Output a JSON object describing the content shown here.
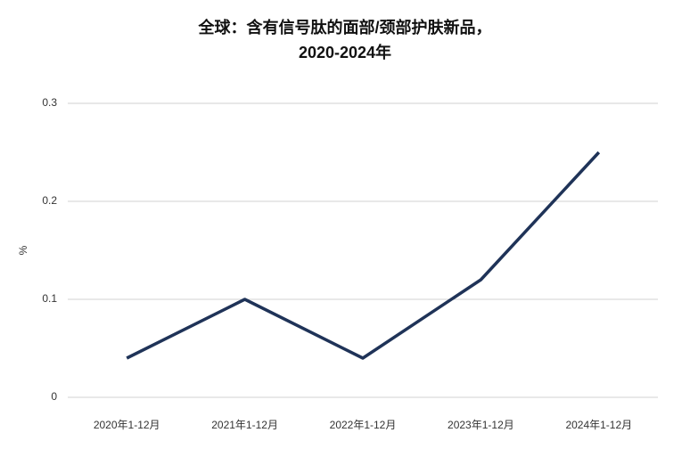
{
  "chart_data": {
    "type": "line",
    "title": [
      "全球：含有信号肽的面部/颈部护肤新品，",
      "2020-2024年"
    ],
    "y_label": "%",
    "categories": [
      "2020年1-12月",
      "2021年1-12月",
      "2022年1-12月",
      "2023年1-12月",
      "2024年1-12月"
    ],
    "series": [
      {
        "name": "%",
        "color": "#1f3358",
        "values": [
          0.04,
          0.1,
          0.04,
          0.12,
          0.25
        ]
      }
    ],
    "ylim": [
      0,
      0.3
    ],
    "yticks": [
      0,
      0.1,
      0.2,
      0.3
    ],
    "grid": true
  }
}
